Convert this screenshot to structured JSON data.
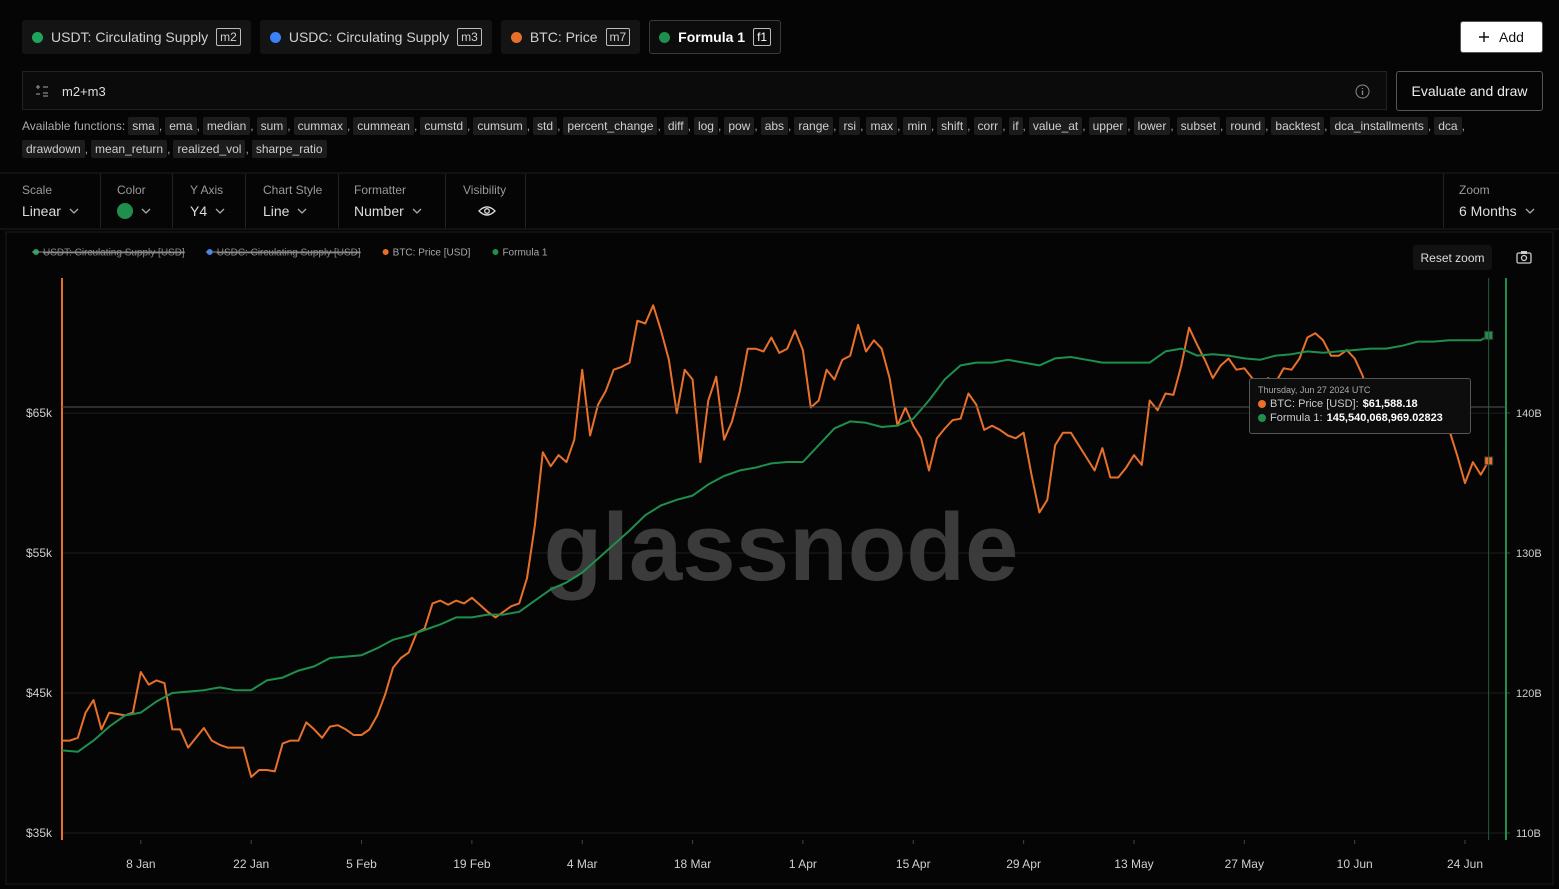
{
  "series_tabs": [
    {
      "name": "USDT: Circulating Supply",
      "tag": "m2",
      "color": "#1fa55b"
    },
    {
      "name": "USDC: Circulating Supply",
      "tag": "m3",
      "color": "#3b82f6"
    },
    {
      "name": "BTC: Price",
      "tag": "m7",
      "color": "#e8702a"
    },
    {
      "name": "Formula 1",
      "tag": "f1",
      "color": "#1f8f4e",
      "active": true
    }
  ],
  "add_button": "Add",
  "formula": "m2+m3",
  "evaluate_button": "Evaluate and draw",
  "functions": {
    "label": "Available functions:",
    "separator": ",",
    "items": [
      "sma",
      "ema",
      "median",
      "sum",
      "cummax",
      "cummean",
      "cumstd",
      "cumsum",
      "std",
      "percent_change",
      "diff",
      "log",
      "pow",
      "abs",
      "range",
      "rsi",
      "max",
      "min",
      "shift",
      "corr",
      "if",
      "value_at",
      "upper",
      "lower",
      "subset",
      "round",
      "backtest",
      "dca_installments",
      "dca",
      "drawdown",
      "mean_return",
      "realized_vol",
      "sharpe_ratio"
    ]
  },
  "settings": [
    {
      "label": "Scale",
      "value": "Linear"
    },
    {
      "label": "Color",
      "color": "#1f8f4e"
    },
    {
      "label": "Y Axis",
      "value": "Y4"
    },
    {
      "label": "Chart Style",
      "value": "Line"
    },
    {
      "label": "Formatter",
      "value": "Number"
    },
    {
      "label": "Visibility"
    }
  ],
  "zoom": {
    "label": "Zoom",
    "value": "6 Months"
  },
  "reset_zoom": "Reset zoom",
  "watermark": "glassnode",
  "tooltip": {
    "date": "Thursday, Jun 27 2024 UTC",
    "rows": [
      {
        "name": "BTC: Price [USD]:",
        "value": "$61,588.18",
        "color": "#e8702a"
      },
      {
        "name": "Formula 1:",
        "value": "145,540,068,969.02823",
        "color": "#1f8f4e"
      }
    ]
  },
  "chart_data": {
    "type": "line",
    "hidden_series": [
      {
        "name": "USDT: Circulating Supply [USD]",
        "color": "#1fa55b"
      },
      {
        "name": "USDC: Circulating Supply [USD]",
        "color": "#3b82f6"
      }
    ],
    "xlim": [
      0,
      183.2
    ],
    "xticks": [
      {
        "value": 10,
        "label": "8 Jan"
      },
      {
        "value": 24,
        "label": "22 Jan"
      },
      {
        "value": 38,
        "label": "5 Feb"
      },
      {
        "value": 52,
        "label": "19 Feb"
      },
      {
        "value": 66,
        "label": "4 Mar"
      },
      {
        "value": 80,
        "label": "18 Mar"
      },
      {
        "value": 94,
        "label": "1 Apr"
      },
      {
        "value": 108,
        "label": "15 Apr"
      },
      {
        "value": 122,
        "label": "29 Apr"
      },
      {
        "value": 136,
        "label": "13 May"
      },
      {
        "value": 150,
        "label": "27 May"
      },
      {
        "value": 164,
        "label": "10 Jun"
      },
      {
        "value": 178,
        "label": "24 Jun"
      }
    ],
    "ylim": [
      34500,
      74650
    ],
    "yticks": [
      {
        "value": 35000,
        "label": "$35k"
      },
      {
        "value": 45000,
        "label": "$45k"
      },
      {
        "value": 55000,
        "label": "$55k"
      },
      {
        "value": 65000,
        "label": "$65k"
      }
    ],
    "y2lim": [
      109.5,
      149.64
    ],
    "y2ticks": [
      {
        "value": 110,
        "label": "110B"
      },
      {
        "value": 120,
        "label": "120B"
      },
      {
        "value": 130,
        "label": "130B"
      },
      {
        "value": 140,
        "label": "140B"
      }
    ],
    "grid": true,
    "series": [
      {
        "name": "BTC: Price [USD]",
        "color": "#e8702a",
        "axis": "y",
        "x": [
          0,
          1,
          2,
          3,
          4,
          5,
          6,
          7,
          8,
          9,
          10,
          11,
          12,
          13,
          14,
          15,
          16,
          17,
          18,
          19,
          20,
          21,
          22,
          23,
          24,
          25,
          26,
          27,
          28,
          29,
          30,
          31,
          32,
          33,
          34,
          35,
          36,
          37,
          38,
          39,
          40,
          41,
          42,
          43,
          44,
          45,
          46,
          47,
          48,
          49,
          50,
          51,
          52,
          53,
          54,
          55,
          56,
          57,
          58,
          59,
          60,
          61,
          62,
          63,
          64,
          65,
          66,
          67,
          68,
          69,
          70,
          71,
          72,
          73,
          74,
          75,
          76,
          77,
          78,
          79,
          80,
          81,
          82,
          83,
          84,
          85,
          86,
          87,
          88,
          89,
          90,
          91,
          92,
          93,
          94,
          95,
          96,
          97,
          98,
          99,
          100,
          101,
          102,
          103,
          104,
          105,
          106,
          107,
          108,
          109,
          110,
          111,
          112,
          113,
          114,
          115,
          116,
          117,
          118,
          119,
          120,
          121,
          122,
          123,
          124,
          125,
          126,
          127,
          128,
          129,
          130,
          131,
          132,
          133,
          134,
          135,
          136,
          137,
          138,
          139,
          140,
          141,
          142,
          143,
          144,
          145,
          146,
          147,
          148,
          149,
          150,
          151,
          152,
          153,
          154,
          155,
          156,
          157,
          158,
          159,
          160,
          161,
          162,
          163,
          164,
          165,
          166,
          167,
          168,
          169,
          170,
          171,
          172,
          173,
          174,
          175,
          176,
          177,
          178,
          179,
          180,
          181
        ],
        "values": [
          41600,
          41600,
          41800,
          43600,
          44500,
          42400,
          43600,
          43500,
          43400,
          43600,
          46500,
          45600,
          45900,
          45700,
          42400,
          42400,
          41100,
          41800,
          42500,
          41600,
          41300,
          41100,
          41100,
          41100,
          39000,
          39500,
          39500,
          39400,
          41400,
          41600,
          41600,
          42900,
          42400,
          41800,
          42600,
          42700,
          42400,
          42000,
          42000,
          42400,
          43400,
          44900,
          46800,
          47500,
          47900,
          49300,
          49600,
          51400,
          51600,
          51300,
          51600,
          51400,
          51800,
          51300,
          50800,
          50400,
          50800,
          51200,
          51400,
          53200,
          57000,
          62200,
          61200,
          62000,
          61500,
          63100,
          68100,
          63400,
          65600,
          66600,
          68100,
          68300,
          68600,
          71600,
          71400,
          72700,
          70900,
          68800,
          65000,
          68100,
          67400,
          61500,
          65900,
          67600,
          63100,
          64400,
          66600,
          69600,
          69600,
          69400,
          70400,
          69300,
          69600,
          70900,
          69500,
          65400,
          65900,
          68100,
          67400,
          68800,
          69100,
          71300,
          69400,
          70200,
          69600,
          67500,
          64100,
          65400,
          64100,
          63200,
          60900,
          63200,
          63900,
          64500,
          64600,
          66400,
          65600,
          63800,
          64100,
          63800,
          63400,
          63200,
          63600,
          60600,
          57900,
          58800,
          62700,
          63600,
          63600,
          62700,
          61800,
          60900,
          62500,
          60400,
          60400,
          61100,
          62000,
          61300,
          65900,
          65200,
          66400,
          66300,
          68400,
          71100,
          69900,
          68800,
          67500,
          68400,
          68900,
          68100,
          68200,
          67500,
          66600,
          67500,
          67200,
          68200,
          68100,
          68900,
          70400,
          70700,
          70200,
          69100,
          69100,
          69500,
          68900,
          67700,
          65900,
          65600,
          65200,
          65200,
          64500,
          64100,
          64500,
          64900,
          64500,
          64500,
          63800,
          62000,
          60000,
          61500,
          60600,
          61588.18
        ]
      },
      {
        "name": "Formula 1",
        "color": "#1f8f4e",
        "axis": "y2",
        "x": [
          0,
          2,
          4,
          6,
          8,
          10,
          12,
          14,
          16,
          18,
          20,
          22,
          24,
          26,
          28,
          30,
          32,
          34,
          36,
          38,
          40,
          42,
          44,
          46,
          48,
          50,
          52,
          54,
          56,
          58,
          60,
          62,
          64,
          66,
          68,
          70,
          72,
          74,
          76,
          78,
          80,
          82,
          84,
          86,
          88,
          90,
          92,
          94,
          96,
          98,
          100,
          102,
          104,
          106,
          108,
          110,
          112,
          114,
          116,
          118,
          120,
          122,
          124,
          126,
          128,
          130,
          132,
          134,
          136,
          138,
          140,
          142,
          144,
          146,
          148,
          150,
          152,
          154,
          156,
          158,
          160,
          162,
          164,
          166,
          168,
          170,
          172,
          174,
          176,
          178,
          180,
          181
        ],
        "values": [
          115.9,
          115.8,
          116.6,
          117.6,
          118.4,
          118.6,
          119.4,
          120.0,
          120.1,
          120.2,
          120.4,
          120.2,
          120.2,
          120.9,
          121.1,
          121.6,
          121.9,
          122.5,
          122.6,
          122.7,
          123.2,
          123.8,
          124.1,
          124.5,
          124.9,
          125.4,
          125.4,
          125.6,
          125.6,
          125.8,
          126.6,
          127.4,
          127.9,
          128.6,
          129.6,
          130.6,
          131.6,
          132.7,
          133.4,
          133.8,
          134.1,
          134.9,
          135.5,
          135.9,
          136.1,
          136.4,
          136.5,
          136.5,
          137.7,
          138.9,
          139.4,
          139.3,
          139.0,
          139.1,
          139.6,
          140.9,
          142.4,
          143.4,
          143.6,
          143.6,
          143.8,
          143.6,
          143.4,
          143.9,
          144.0,
          143.8,
          143.6,
          143.6,
          143.6,
          143.6,
          144.4,
          144.6,
          144.1,
          144.2,
          144.1,
          143.9,
          143.8,
          144.1,
          144.2,
          144.4,
          144.3,
          144.4,
          144.5,
          144.6,
          144.6,
          144.8,
          145.1,
          145.1,
          145.2,
          145.2,
          145.2,
          145.54
        ]
      }
    ]
  }
}
